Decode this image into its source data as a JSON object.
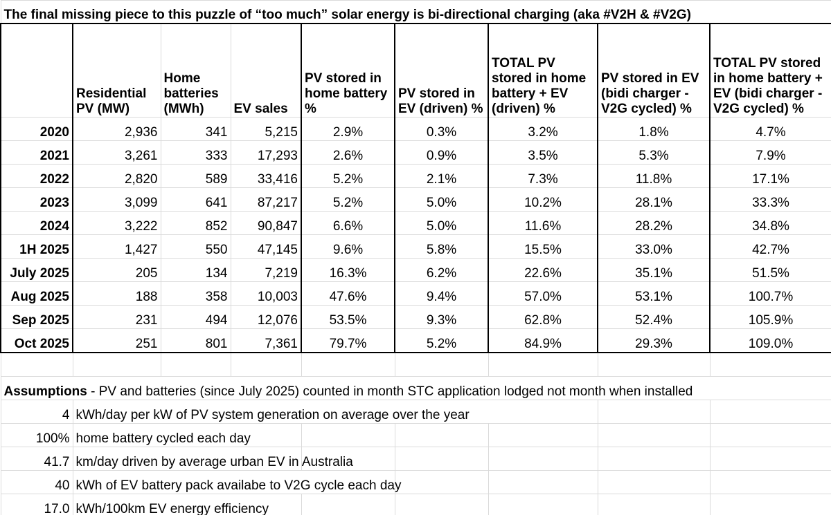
{
  "title": "The final missing piece to this puzzle of “too much” solar energy is bi-directional charging (aka #V2H & #V2G)",
  "headers": {
    "residential_pv": "Residential PV (MW)",
    "home_batteries": "Home batteries (MWh)",
    "ev_sales": "EV sales",
    "pv_stored_home_battery": "PV stored in home battery %",
    "pv_stored_ev_driven": "PV stored in EV (driven) %",
    "total_pv_driven": "TOTAL PV stored in home battery + EV (driven) %",
    "pv_stored_ev_v2g": "PV stored in EV (bidi charger - V2G cycled) %",
    "total_pv_v2g": "TOTAL PV stored in home battery + EV (bidi charger - V2G cycled) %"
  },
  "rows": [
    {
      "period": "2020",
      "pv": "2,936",
      "batt": "341",
      "ev": "5,215",
      "home_pct": "2.9%",
      "ev_pct": "0.3%",
      "total_driven": "3.2%",
      "v2g_pct": "1.8%",
      "total_v2g": "4.7%"
    },
    {
      "period": "2021",
      "pv": "3,261",
      "batt": "333",
      "ev": "17,293",
      "home_pct": "2.6%",
      "ev_pct": "0.9%",
      "total_driven": "3.5%",
      "v2g_pct": "5.3%",
      "total_v2g": "7.9%"
    },
    {
      "period": "2022",
      "pv": "2,820",
      "batt": "589",
      "ev": "33,416",
      "home_pct": "5.2%",
      "ev_pct": "2.1%",
      "total_driven": "7.3%",
      "v2g_pct": "11.8%",
      "total_v2g": "17.1%"
    },
    {
      "period": "2023",
      "pv": "3,099",
      "batt": "641",
      "ev": "87,217",
      "home_pct": "5.2%",
      "ev_pct": "5.0%",
      "total_driven": "10.2%",
      "v2g_pct": "28.1%",
      "total_v2g": "33.3%"
    },
    {
      "period": "2024",
      "pv": "3,222",
      "batt": "852",
      "ev": "90,847",
      "home_pct": "6.6%",
      "ev_pct": "5.0%",
      "total_driven": "11.6%",
      "v2g_pct": "28.2%",
      "total_v2g": "34.8%"
    },
    {
      "period": "1H 2025",
      "pv": "1,427",
      "batt": "550",
      "ev": "47,145",
      "home_pct": "9.6%",
      "ev_pct": "5.8%",
      "total_driven": "15.5%",
      "v2g_pct": "33.0%",
      "total_v2g": "42.7%"
    },
    {
      "period": "July 2025",
      "pv": "205",
      "batt": "134",
      "ev": "7,219",
      "home_pct": "16.3%",
      "ev_pct": "6.2%",
      "total_driven": "22.6%",
      "v2g_pct": "35.1%",
      "total_v2g": "51.5%"
    },
    {
      "period": "Aug 2025",
      "pv": "188",
      "batt": "358",
      "ev": "10,003",
      "home_pct": "47.6%",
      "ev_pct": "9.4%",
      "total_driven": "57.0%",
      "v2g_pct": "53.1%",
      "total_v2g": "100.7%"
    },
    {
      "period": "Sep 2025",
      "pv": "231",
      "batt": "494",
      "ev": "12,076",
      "home_pct": "53.5%",
      "ev_pct": "9.3%",
      "total_driven": "62.8%",
      "v2g_pct": "52.4%",
      "total_v2g": "105.9%"
    },
    {
      "period": "Oct 2025",
      "pv": "251",
      "batt": "801",
      "ev": "7,361",
      "home_pct": "79.7%",
      "ev_pct": "5.2%",
      "total_driven": "84.9%",
      "v2g_pct": "29.3%",
      "total_v2g": "109.0%"
    }
  ],
  "assumptions": {
    "label": "Assumptions",
    "text": " - PV and batteries (since July 2025) counted in month STC application lodged not month when installed",
    "items": [
      {
        "value": "4",
        "desc": "kWh/day per kW of PV system generation on average over the year"
      },
      {
        "value": "100%",
        "desc": "home battery cycled each day"
      },
      {
        "value": "41.7",
        "desc": "km/day driven by average urban EV in Australia"
      },
      {
        "value": "40",
        "desc": "kWh of EV battery pack availabe to V2G cycle each day"
      },
      {
        "value": "17.0",
        "desc": "kWh/100km EV energy efficiency"
      }
    ]
  }
}
